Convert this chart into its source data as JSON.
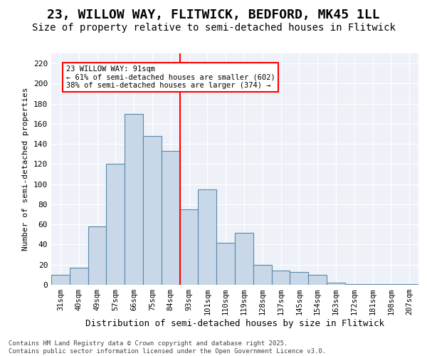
{
  "title": "23, WILLOW WAY, FLITWICK, BEDFORD, MK45 1LL",
  "subtitle": "Size of property relative to semi-detached houses in Flitwick",
  "xlabel": "Distribution of semi-detached houses by size in Flitwick",
  "ylabel": "Number of semi-detached properties",
  "categories": [
    "31sqm",
    "40sqm",
    "49sqm",
    "57sqm",
    "66sqm",
    "75sqm",
    "84sqm",
    "93sqm",
    "101sqm",
    "110sqm",
    "119sqm",
    "128sqm",
    "137sqm",
    "145sqm",
    "154sqm",
    "163sqm",
    "172sqm",
    "181sqm",
    "198sqm",
    "207sqm"
  ],
  "values": [
    10,
    17,
    58,
    120,
    170,
    148,
    133,
    75,
    95,
    42,
    52,
    20,
    14,
    13,
    10,
    2,
    1,
    1,
    1,
    1
  ],
  "bar_color": "#c8d8e8",
  "bar_edge_color": "#5a88aa",
  "vline_color": "red",
  "vline_idx": 6.5,
  "annotation_text": "23 WILLOW WAY: 91sqm\n← 61% of semi-detached houses are smaller (602)\n38% of semi-detached houses are larger (374) →",
  "annotation_box_facecolor": "white",
  "annotation_box_edgecolor": "red",
  "ylim": [
    0,
    230
  ],
  "yticks": [
    0,
    20,
    40,
    60,
    80,
    100,
    120,
    140,
    160,
    180,
    200,
    220
  ],
  "bg_color": "#eef2f8",
  "footer": "Contains HM Land Registry data © Crown copyright and database right 2025.\nContains public sector information licensed under the Open Government Licence v3.0.",
  "title_fontsize": 13,
  "subtitle_fontsize": 10,
  "footer_fontsize": 6.5
}
